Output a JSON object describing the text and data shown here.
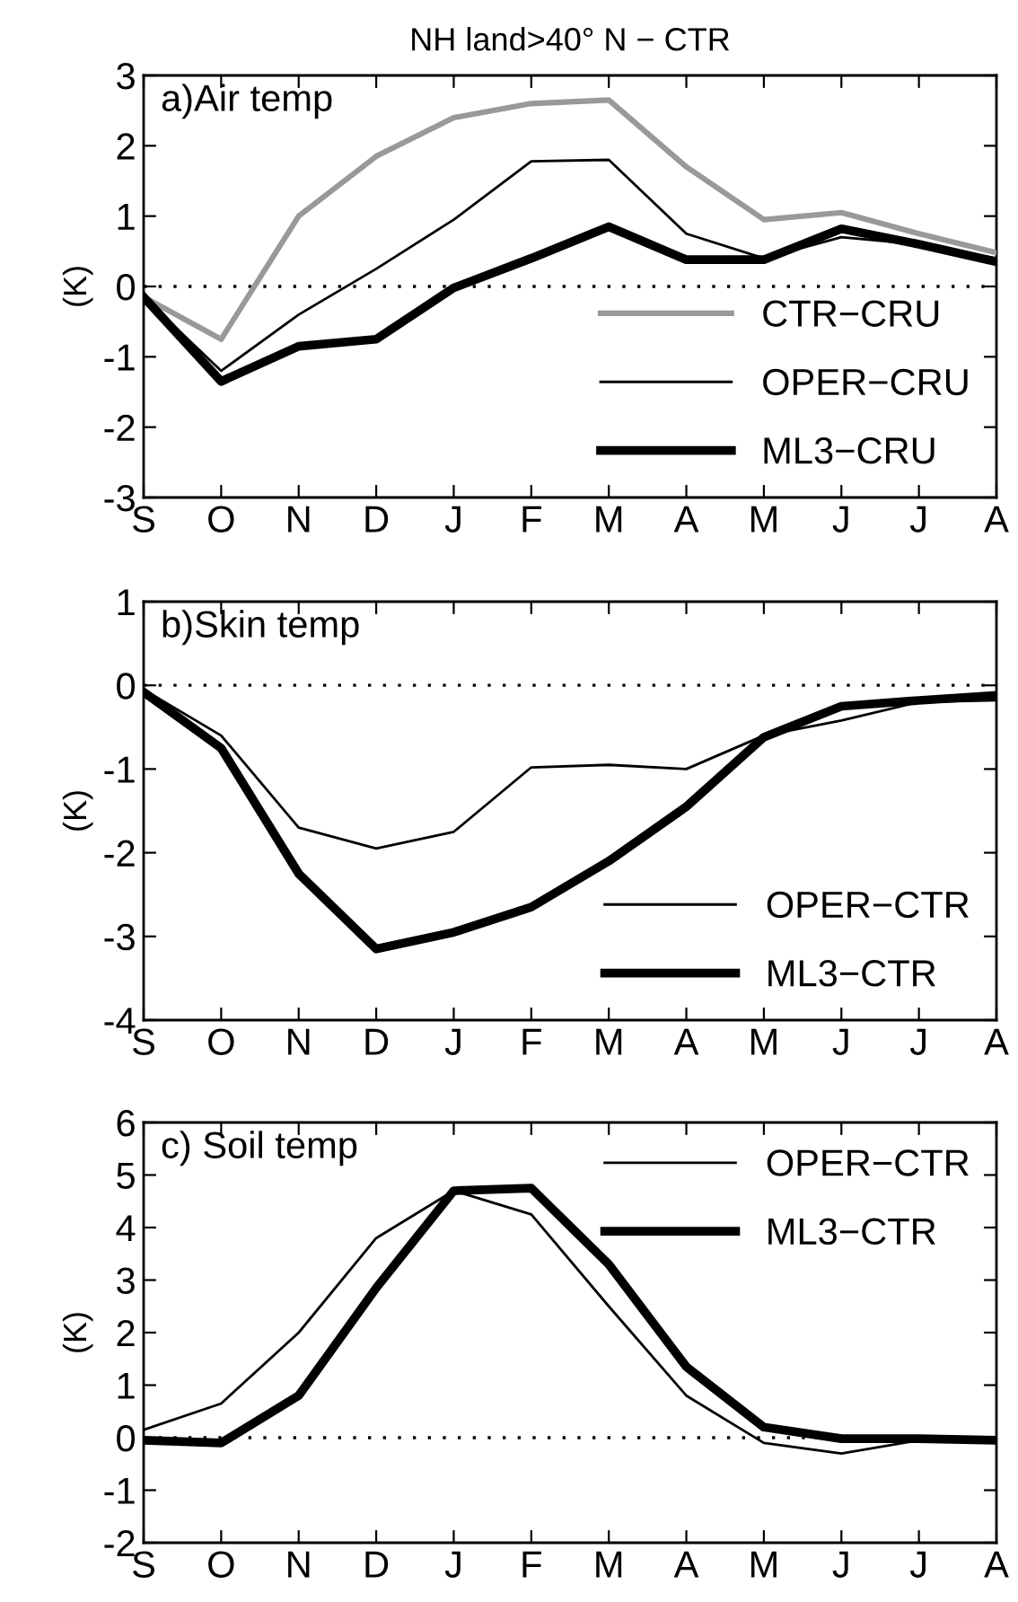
{
  "chart_data": [
    {
      "type": "line",
      "title": "NH land>40° N − CTR",
      "ylabel": "(K)",
      "annotations": [
        "a)Air temp"
      ],
      "categories": [
        "S",
        "O",
        "N",
        "D",
        "J",
        "F",
        "M",
        "A",
        "M",
        "J",
        "J",
        "A"
      ],
      "series": [
        {
          "name": "CTR−CRU",
          "color": "#999999",
          "values": [
            -0.15,
            -0.75,
            1.0,
            1.85,
            2.4,
            2.6,
            2.65,
            1.7,
            0.95,
            1.05,
            0.75,
            0.48
          ]
        },
        {
          "name": "OPER−CRU",
          "color": "#000000",
          "values": [
            -0.15,
            -1.2,
            -0.4,
            0.25,
            0.95,
            1.78,
            1.8,
            0.75,
            0.4,
            0.7,
            0.6,
            0.4
          ]
        },
        {
          "name": "ML3−CRU",
          "color": "#000000",
          "values": [
            -0.15,
            -1.35,
            -0.85,
            -0.75,
            -0.02,
            0.4,
            0.85,
            0.38,
            0.38,
            0.82,
            0.6,
            0.35
          ]
        }
      ],
      "ylim": [
        -3,
        3
      ],
      "yticks": [
        -3,
        -2,
        -1,
        0,
        1,
        2,
        3
      ],
      "ref_lines": [
        {
          "axis": "y",
          "value": 0,
          "color": "#000000",
          "line_style": "dotted"
        }
      ],
      "legend": "bottom right",
      "grid": false,
      "line_style": "solid"
    },
    {
      "type": "line",
      "ylabel": "(K)",
      "annotations": [
        "b)Skin temp"
      ],
      "categories": [
        "S",
        "O",
        "N",
        "D",
        "J",
        "F",
        "M",
        "A",
        "M",
        "J",
        "J",
        "A"
      ],
      "series": [
        {
          "name": "OPER−CTR",
          "color": "#000000",
          "values": [
            -0.05,
            -0.6,
            -1.7,
            -1.95,
            -1.75,
            -0.98,
            -0.95,
            -1.0,
            -0.6,
            -0.42,
            -0.2,
            -0.18
          ]
        },
        {
          "name": "ML3−CTR",
          "color": "#000000",
          "values": [
            -0.08,
            -0.75,
            -2.25,
            -3.15,
            -2.95,
            -2.65,
            -2.1,
            -1.45,
            -0.62,
            -0.25,
            -0.18,
            -0.12
          ]
        }
      ],
      "ylim": [
        -4,
        1
      ],
      "yticks": [
        -4,
        -3,
        -2,
        -1,
        0,
        1
      ],
      "ref_lines": [
        {
          "axis": "y",
          "value": 0,
          "color": "#000000",
          "line_style": "dotted"
        }
      ],
      "legend": "bottom right",
      "grid": false,
      "line_style": "solid"
    },
    {
      "type": "line",
      "ylabel": "(K)",
      "annotations": [
        "c) Soil temp"
      ],
      "categories": [
        "S",
        "O",
        "N",
        "D",
        "J",
        "F",
        "M",
        "A",
        "M",
        "J",
        "J",
        "A"
      ],
      "series": [
        {
          "name": "OPER−CTR",
          "color": "#000000",
          "values": [
            0.15,
            0.65,
            2.0,
            3.8,
            4.7,
            4.25,
            2.5,
            0.8,
            -0.1,
            -0.3,
            -0.05,
            -0.05
          ]
        },
        {
          "name": "ML3−CTR",
          "color": "#000000",
          "values": [
            -0.05,
            -0.1,
            0.8,
            2.85,
            4.7,
            4.75,
            3.3,
            1.35,
            0.2,
            -0.02,
            -0.02,
            -0.05
          ]
        }
      ],
      "ylim": [
        -2,
        6
      ],
      "yticks": [
        -2,
        -1,
        0,
        1,
        2,
        3,
        4,
        5,
        6
      ],
      "ref_lines": [
        {
          "axis": "y",
          "value": 0,
          "color": "#000000",
          "line_style": "dotted"
        }
      ],
      "legend": "top right",
      "grid": false,
      "line_style": "solid"
    }
  ]
}
